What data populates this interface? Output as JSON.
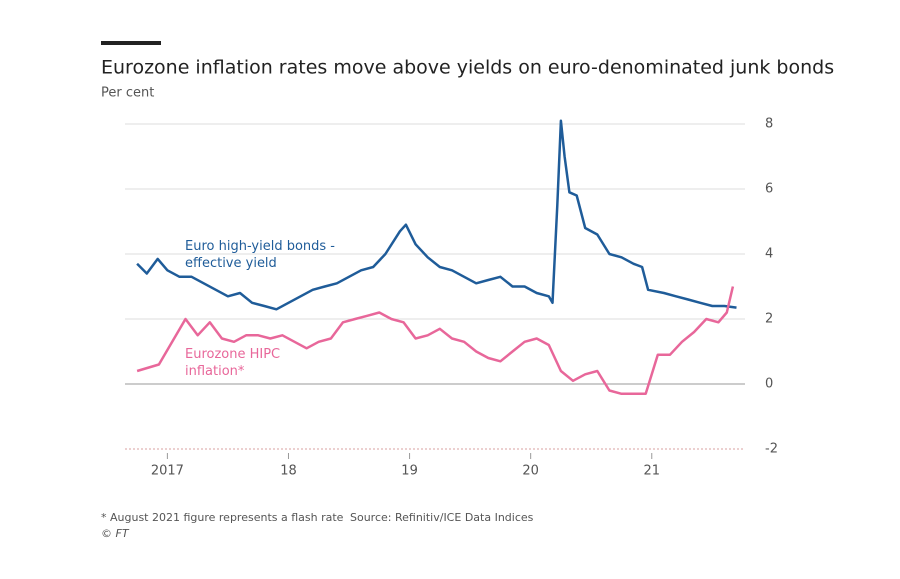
{
  "chart_data": {
    "type": "line",
    "title": "Eurozone inflation rates move above yields on euro-denominated junk bonds",
    "subtitle": "Per cent",
    "footnote": "* August 2021 figure represents a flash rate",
    "source": "Source: Refinitiv/ICE Data Indices",
    "credit": "© FT",
    "xlim": [
      2016.65,
      2021.77
    ],
    "xticks": [
      2017,
      {
        "value": 2018,
        "label": "18"
      },
      {
        "value": 2019,
        "label": "19"
      },
      {
        "value": 2020,
        "label": "20"
      },
      {
        "value": 2021,
        "label": "21"
      }
    ],
    "ylim": [
      -2,
      8
    ],
    "yticks": [
      -2,
      0,
      2,
      4,
      6,
      8
    ],
    "grid": true,
    "series": [
      {
        "name": "Euro high-yield bonds - effective yield",
        "color": "#1f5c99",
        "x": [
          2016.75,
          2016.83,
          2016.92,
          2017.0,
          2017.1,
          2017.2,
          2017.3,
          2017.4,
          2017.5,
          2017.6,
          2017.7,
          2017.8,
          2017.9,
          2018.0,
          2018.1,
          2018.2,
          2018.3,
          2018.4,
          2018.5,
          2018.6,
          2018.7,
          2018.8,
          2018.92,
          2018.97,
          2019.05,
          2019.15,
          2019.25,
          2019.35,
          2019.45,
          2019.55,
          2019.65,
          2019.75,
          2019.85,
          2019.95,
          2020.05,
          2020.15,
          2020.18,
          2020.22,
          2020.25,
          2020.28,
          2020.32,
          2020.38,
          2020.45,
          2020.55,
          2020.65,
          2020.75,
          2020.85,
          2020.92,
          2020.97,
          2021.1,
          2021.2,
          2021.3,
          2021.4,
          2021.5,
          2021.6,
          2021.7
        ],
        "values": [
          3.7,
          3.4,
          3.85,
          3.5,
          3.3,
          3.3,
          3.1,
          2.9,
          2.7,
          2.8,
          2.5,
          2.4,
          2.3,
          2.5,
          2.7,
          2.9,
          3.0,
          3.1,
          3.3,
          3.5,
          3.6,
          4.0,
          4.7,
          4.9,
          4.3,
          3.9,
          3.6,
          3.5,
          3.3,
          3.1,
          3.2,
          3.3,
          3.0,
          3.0,
          2.8,
          2.7,
          2.5,
          5.5,
          8.1,
          7.0,
          5.9,
          5.8,
          4.8,
          4.6,
          4.0,
          3.9,
          3.7,
          3.6,
          2.9,
          2.8,
          2.7,
          2.6,
          2.5,
          2.4,
          2.4,
          2.35
        ]
      },
      {
        "name": "Eurozone HIPC inflation*",
        "color": "#e8679a",
        "x": [
          2016.75,
          2016.93,
          2017.15,
          2017.25,
          2017.35,
          2017.45,
          2017.55,
          2017.65,
          2017.75,
          2017.85,
          2017.95,
          2018.05,
          2018.15,
          2018.25,
          2018.35,
          2018.45,
          2018.55,
          2018.65,
          2018.75,
          2018.85,
          2018.95,
          2019.05,
          2019.15,
          2019.25,
          2019.35,
          2019.45,
          2019.55,
          2019.65,
          2019.75,
          2019.85,
          2019.95,
          2020.05,
          2020.15,
          2020.25,
          2020.35,
          2020.45,
          2020.55,
          2020.65,
          2020.75,
          2020.85,
          2020.95,
          2021.05,
          2021.15,
          2021.25,
          2021.35,
          2021.45,
          2021.55,
          2021.62,
          2021.67
        ],
        "values": [
          0.4,
          0.6,
          2.0,
          1.5,
          1.9,
          1.4,
          1.3,
          1.5,
          1.5,
          1.4,
          1.5,
          1.3,
          1.1,
          1.3,
          1.4,
          1.9,
          2.0,
          2.1,
          2.2,
          2.0,
          1.9,
          1.4,
          1.5,
          1.7,
          1.4,
          1.3,
          1.0,
          0.8,
          0.7,
          1.0,
          1.3,
          1.4,
          1.2,
          0.4,
          0.1,
          0.3,
          0.4,
          -0.2,
          -0.3,
          -0.3,
          -0.3,
          0.9,
          0.9,
          1.3,
          1.6,
          2.0,
          1.9,
          2.2,
          3.0
        ]
      }
    ]
  }
}
